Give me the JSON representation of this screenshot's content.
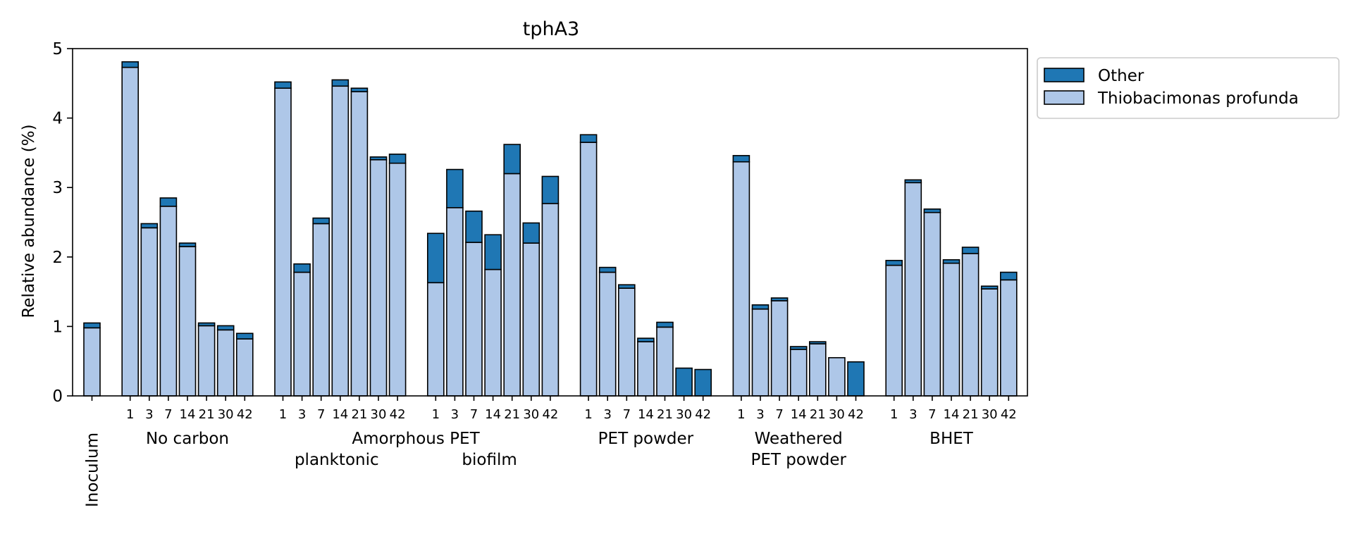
{
  "chart_data": {
    "type": "bar",
    "stacked": true,
    "title": "tphA3",
    "ylabel": "Relative abundance (%)",
    "xlabel": "",
    "ylim": [
      0,
      5
    ],
    "yticks": [
      0,
      1,
      2,
      3,
      4,
      5
    ],
    "grid": false,
    "legend_position": "outside-top-right",
    "colors": {
      "Thiobacimonas profunda": "#aec7e8",
      "Other": "#1f77b4",
      "edge": "#000000"
    },
    "series_order": [
      "Thiobacimonas profunda",
      "Other"
    ],
    "legend": [
      "Other",
      "Thiobacimonas profunda"
    ],
    "groups": [
      {
        "label": "Inoculum",
        "vertical": true,
        "ticks": [
          ""
        ],
        "thio": [
          0.98
        ],
        "other": [
          0.07
        ]
      },
      {
        "label": "No carbon",
        "ticks": [
          "1",
          "3",
          "7",
          "14",
          "21",
          "30",
          "42"
        ],
        "thio": [
          4.73,
          2.42,
          2.73,
          2.15,
          1.01,
          0.95,
          0.82
        ],
        "other": [
          0.08,
          0.06,
          0.12,
          0.05,
          0.04,
          0.06,
          0.08
        ]
      },
      {
        "label": "",
        "sublabel": "planktonic",
        "ticks": [
          "1",
          "3",
          "7",
          "14",
          "21",
          "30",
          "42"
        ],
        "thio": [
          4.43,
          1.78,
          2.48,
          4.46,
          4.38,
          3.4,
          3.35
        ],
        "other": [
          0.09,
          0.12,
          0.08,
          0.09,
          0.05,
          0.04,
          0.13
        ]
      },
      {
        "label": "",
        "sublabel": "biofilm",
        "ticks": [
          "1",
          "3",
          "7",
          "14",
          "21",
          "30",
          "42"
        ],
        "thio": [
          1.63,
          2.71,
          2.21,
          1.82,
          3.2,
          2.2,
          2.77
        ],
        "other": [
          0.71,
          0.55,
          0.45,
          0.5,
          0.42,
          0.29,
          0.39
        ]
      },
      {
        "label": "PET powder",
        "ticks": [
          "1",
          "3",
          "7",
          "14",
          "21",
          "30",
          "42"
        ],
        "thio": [
          3.65,
          1.78,
          1.55,
          0.78,
          0.99,
          0.0,
          0.0
        ],
        "other": [
          0.11,
          0.07,
          0.05,
          0.05,
          0.07,
          0.4,
          0.38
        ]
      },
      {
        "label": "Weathered",
        "label2": "PET powder",
        "ticks": [
          "1",
          "3",
          "7",
          "14",
          "21",
          "30",
          "42"
        ],
        "thio": [
          3.37,
          1.25,
          1.37,
          0.67,
          0.75,
          0.55,
          0.0
        ],
        "other": [
          0.09,
          0.06,
          0.04,
          0.04,
          0.03,
          0.0,
          0.49
        ]
      },
      {
        "label": "BHET",
        "ticks": [
          "1",
          "3",
          "7",
          "14",
          "21",
          "30",
          "42"
        ],
        "thio": [
          1.88,
          3.07,
          2.64,
          1.91,
          2.05,
          1.54,
          1.67
        ],
        "other": [
          0.07,
          0.04,
          0.05,
          0.05,
          0.09,
          0.04,
          0.11
        ]
      }
    ],
    "shared_label": "Amorphous PET"
  }
}
